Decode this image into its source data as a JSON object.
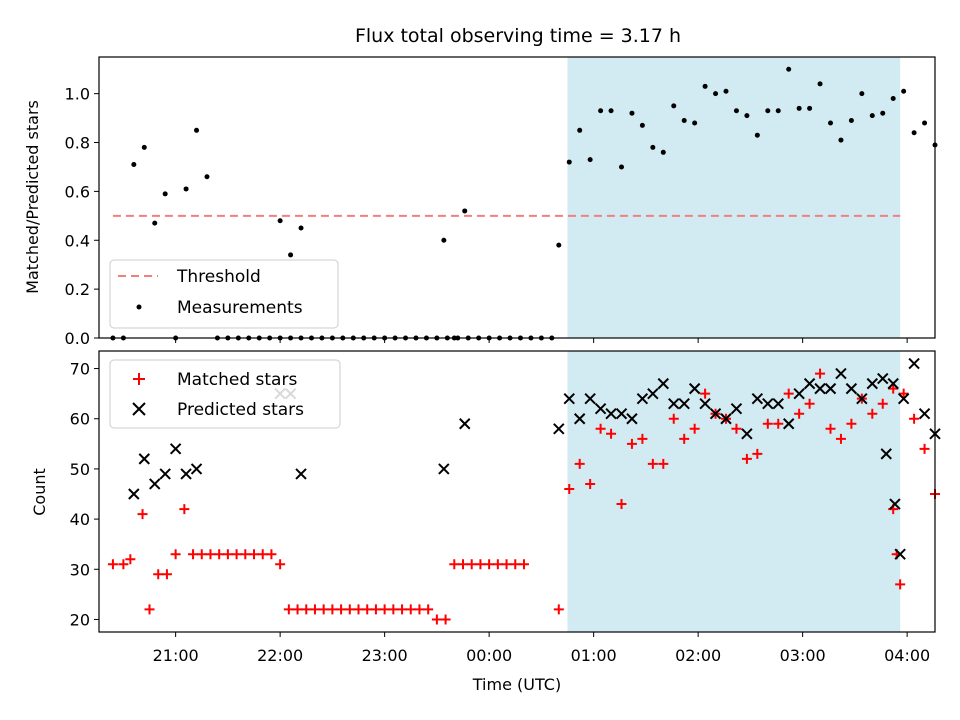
{
  "chart_data": [
    {
      "type": "scatter",
      "title": "Flux total observing time = 3.17 h",
      "xlabel": "",
      "ylabel": "Matched/Predicted stars",
      "xlim": [
        "20:16",
        "04:16"
      ],
      "ylim": [
        0,
        1.15
      ],
      "y_ticks": [
        0.0,
        0.2,
        0.4,
        0.6,
        0.8,
        1.0
      ],
      "shaded_interval": {
        "from": "00:45",
        "to": "03:56",
        "color": "#add8e6"
      },
      "threshold": {
        "name": "Threshold",
        "y": 0.5,
        "from": "20:24",
        "to": "03:56",
        "color": "#f08080",
        "style": "dashed"
      },
      "legend_position": "lower left",
      "series": [
        {
          "name": "Measurements",
          "color": "#000000",
          "marker": "dot",
          "points": [
            [
              "20:24",
              0
            ],
            [
              "20:30",
              0
            ],
            [
              "20:36",
              0.71
            ],
            [
              "20:42",
              0.78
            ],
            [
              "20:48",
              0.47
            ],
            [
              "20:54",
              0.59
            ],
            [
              "21:00",
              0
            ],
            [
              "21:06",
              0.61
            ],
            [
              "21:12",
              0.85
            ],
            [
              "21:18",
              0.66
            ],
            [
              "21:24",
              0
            ],
            [
              "21:30",
              0
            ],
            [
              "21:36",
              0
            ],
            [
              "21:42",
              0
            ],
            [
              "21:48",
              0
            ],
            [
              "21:54",
              0
            ],
            [
              "22:00",
              0
            ],
            [
              "22:06",
              0
            ],
            [
              "22:12",
              0
            ],
            [
              "22:18",
              0
            ],
            [
              "22:24",
              0
            ],
            [
              "22:30",
              0
            ],
            [
              "22:00",
              0.48
            ],
            [
              "22:06",
              0.34
            ],
            [
              "22:12",
              0.45
            ],
            [
              "22:36",
              0
            ],
            [
              "22:42",
              0
            ],
            [
              "22:48",
              0
            ],
            [
              "22:54",
              0
            ],
            [
              "23:00",
              0
            ],
            [
              "23:06",
              0
            ],
            [
              "23:12",
              0
            ],
            [
              "23:18",
              0
            ],
            [
              "23:24",
              0
            ],
            [
              "23:30",
              0
            ],
            [
              "23:36",
              0
            ],
            [
              "23:42",
              0
            ],
            [
              "23:48",
              0
            ],
            [
              "23:54",
              0
            ],
            [
              "00:00",
              0
            ],
            [
              "00:06",
              0
            ],
            [
              "00:12",
              0
            ],
            [
              "00:18",
              0
            ],
            [
              "00:24",
              0
            ],
            [
              "00:30",
              0
            ],
            [
              "00:36",
              0
            ],
            [
              "23:34",
              0.4
            ],
            [
              "23:46",
              0.52
            ],
            [
              "23:40",
              0
            ],
            [
              "00:40",
              0.38
            ],
            [
              "00:46",
              0.72
            ],
            [
              "00:52",
              0.85
            ],
            [
              "00:58",
              0.73
            ],
            [
              "01:04",
              0.93
            ],
            [
              "01:10",
              0.93
            ],
            [
              "01:16",
              0.7
            ],
            [
              "01:22",
              0.92
            ],
            [
              "01:28",
              0.87
            ],
            [
              "01:34",
              0.78
            ],
            [
              "01:40",
              0.76
            ],
            [
              "01:46",
              0.95
            ],
            [
              "01:52",
              0.89
            ],
            [
              "01:58",
              0.88
            ],
            [
              "02:04",
              1.03
            ],
            [
              "02:10",
              1.0
            ],
            [
              "02:16",
              1.01
            ],
            [
              "02:22",
              0.93
            ],
            [
              "02:28",
              0.91
            ],
            [
              "02:34",
              0.83
            ],
            [
              "02:40",
              0.93
            ],
            [
              "02:46",
              0.93
            ],
            [
              "02:52",
              1.1
            ],
            [
              "02:58",
              0.94
            ],
            [
              "03:04",
              0.94
            ],
            [
              "03:10",
              1.04
            ],
            [
              "03:16",
              0.88
            ],
            [
              "03:22",
              0.81
            ],
            [
              "03:28",
              0.89
            ],
            [
              "03:34",
              1.0
            ],
            [
              "03:40",
              0.91
            ],
            [
              "03:46",
              0.92
            ],
            [
              "03:52",
              0.98
            ],
            [
              "03:58",
              1.01
            ],
            [
              "04:04",
              0.84
            ],
            [
              "04:10",
              0.88
            ],
            [
              "04:16",
              0.79
            ]
          ]
        }
      ]
    },
    {
      "type": "scatter",
      "title": "",
      "xlabel": "Time (UTC)",
      "ylabel": "Count",
      "xlim": [
        "20:16",
        "04:16"
      ],
      "ylim": [
        17.5,
        73.5
      ],
      "y_ticks": [
        20,
        30,
        40,
        50,
        60,
        70
      ],
      "x_ticks": [
        "21:00",
        "22:00",
        "23:00",
        "00:00",
        "01:00",
        "02:00",
        "03:00",
        "04:00"
      ],
      "shaded_interval": {
        "from": "00:45",
        "to": "03:56",
        "color": "#add8e6"
      },
      "legend_position": "upper left",
      "series": [
        {
          "name": "Matched stars",
          "color": "#ff0000",
          "marker": "plus",
          "points": [
            [
              "20:24",
              31
            ],
            [
              "20:30",
              31
            ],
            [
              "20:34",
              32
            ],
            [
              "20:41",
              41
            ],
            [
              "20:45",
              22
            ],
            [
              "20:50",
              29
            ],
            [
              "20:55",
              29
            ],
            [
              "21:00",
              33
            ],
            [
              "21:05",
              42
            ],
            [
              "21:10",
              33
            ],
            [
              "21:15",
              33
            ],
            [
              "21:20",
              33
            ],
            [
              "21:25",
              33
            ],
            [
              "21:30",
              33
            ],
            [
              "21:35",
              33
            ],
            [
              "21:40",
              33
            ],
            [
              "21:45",
              33
            ],
            [
              "21:50",
              33
            ],
            [
              "21:55",
              33
            ],
            [
              "22:00",
              31
            ],
            [
              "22:05",
              22
            ],
            [
              "22:10",
              22
            ],
            [
              "22:15",
              22
            ],
            [
              "22:20",
              22
            ],
            [
              "22:25",
              22
            ],
            [
              "22:30",
              22
            ],
            [
              "22:35",
              22
            ],
            [
              "22:40",
              22
            ],
            [
              "22:45",
              22
            ],
            [
              "22:50",
              22
            ],
            [
              "22:55",
              22
            ],
            [
              "23:00",
              22
            ],
            [
              "23:05",
              22
            ],
            [
              "23:10",
              22
            ],
            [
              "23:15",
              22
            ],
            [
              "23:20",
              22
            ],
            [
              "23:25",
              22
            ],
            [
              "23:30",
              20
            ],
            [
              "23:35",
              20
            ],
            [
              "23:40",
              31
            ],
            [
              "23:45",
              31
            ],
            [
              "23:50",
              31
            ],
            [
              "23:55",
              31
            ],
            [
              "00:00",
              31
            ],
            [
              "00:05",
              31
            ],
            [
              "00:10",
              31
            ],
            [
              "00:15",
              31
            ],
            [
              "00:20",
              31
            ],
            [
              "00:40",
              22
            ],
            [
              "00:46",
              46
            ],
            [
              "00:52",
              51
            ],
            [
              "00:58",
              47
            ],
            [
              "01:04",
              58
            ],
            [
              "01:10",
              57
            ],
            [
              "01:16",
              43
            ],
            [
              "01:22",
              55
            ],
            [
              "01:28",
              56
            ],
            [
              "01:34",
              51
            ],
            [
              "01:40",
              51
            ],
            [
              "01:46",
              60
            ],
            [
              "01:52",
              56
            ],
            [
              "01:58",
              58
            ],
            [
              "02:04",
              65
            ],
            [
              "02:10",
              61
            ],
            [
              "02:16",
              60
            ],
            [
              "02:22",
              58
            ],
            [
              "02:28",
              52
            ],
            [
              "02:34",
              53
            ],
            [
              "02:40",
              59
            ],
            [
              "02:46",
              59
            ],
            [
              "02:52",
              65
            ],
            [
              "02:58",
              61
            ],
            [
              "03:04",
              63
            ],
            [
              "03:10",
              69
            ],
            [
              "03:16",
              58
            ],
            [
              "03:22",
              56
            ],
            [
              "03:28",
              59
            ],
            [
              "03:34",
              64
            ],
            [
              "03:40",
              61
            ],
            [
              "03:46",
              63
            ],
            [
              "03:52",
              66
            ],
            [
              "03:58",
              65
            ],
            [
              "04:04",
              60
            ],
            [
              "04:10",
              54
            ],
            [
              "04:16",
              45
            ],
            [
              "03:52",
              42
            ],
            [
              "03:54",
              33
            ],
            [
              "03:56",
              27
            ]
          ]
        },
        {
          "name": "Predicted stars",
          "color": "#000000",
          "marker": "x",
          "points": [
            [
              "20:36",
              45
            ],
            [
              "20:42",
              52
            ],
            [
              "20:48",
              47
            ],
            [
              "20:54",
              49
            ],
            [
              "21:00",
              54
            ],
            [
              "21:06",
              49
            ],
            [
              "21:12",
              50
            ],
            [
              "22:00",
              65
            ],
            [
              "22:06",
              65
            ],
            [
              "22:12",
              49
            ],
            [
              "23:34",
              50
            ],
            [
              "23:46",
              59
            ],
            [
              "00:40",
              58
            ],
            [
              "00:46",
              64
            ],
            [
              "00:52",
              60
            ],
            [
              "00:58",
              64
            ],
            [
              "01:04",
              62
            ],
            [
              "01:10",
              61
            ],
            [
              "01:16",
              61
            ],
            [
              "01:22",
              60
            ],
            [
              "01:28",
              64
            ],
            [
              "01:34",
              65
            ],
            [
              "01:40",
              67
            ],
            [
              "01:46",
              63
            ],
            [
              "01:52",
              63
            ],
            [
              "01:58",
              66
            ],
            [
              "02:04",
              63
            ],
            [
              "02:10",
              61
            ],
            [
              "02:16",
              60
            ],
            [
              "02:22",
              62
            ],
            [
              "02:28",
              57
            ],
            [
              "02:34",
              64
            ],
            [
              "02:40",
              63
            ],
            [
              "02:46",
              63
            ],
            [
              "02:52",
              59
            ],
            [
              "02:58",
              65
            ],
            [
              "03:04",
              67
            ],
            [
              "03:10",
              66
            ],
            [
              "03:16",
              66
            ],
            [
              "03:22",
              69
            ],
            [
              "03:28",
              66
            ],
            [
              "03:34",
              64
            ],
            [
              "03:40",
              67
            ],
            [
              "03:46",
              68
            ],
            [
              "03:52",
              67
            ],
            [
              "03:58",
              64
            ],
            [
              "04:04",
              71
            ],
            [
              "04:10",
              61
            ],
            [
              "04:16",
              57
            ],
            [
              "03:48",
              53
            ],
            [
              "03:53",
              43
            ],
            [
              "03:56",
              33
            ]
          ]
        }
      ]
    }
  ],
  "legend_top": {
    "threshold_label": "Threshold",
    "measurements_label": "Measurements"
  },
  "legend_bottom": {
    "matched_label": "Matched stars",
    "predicted_label": "Predicted stars"
  }
}
